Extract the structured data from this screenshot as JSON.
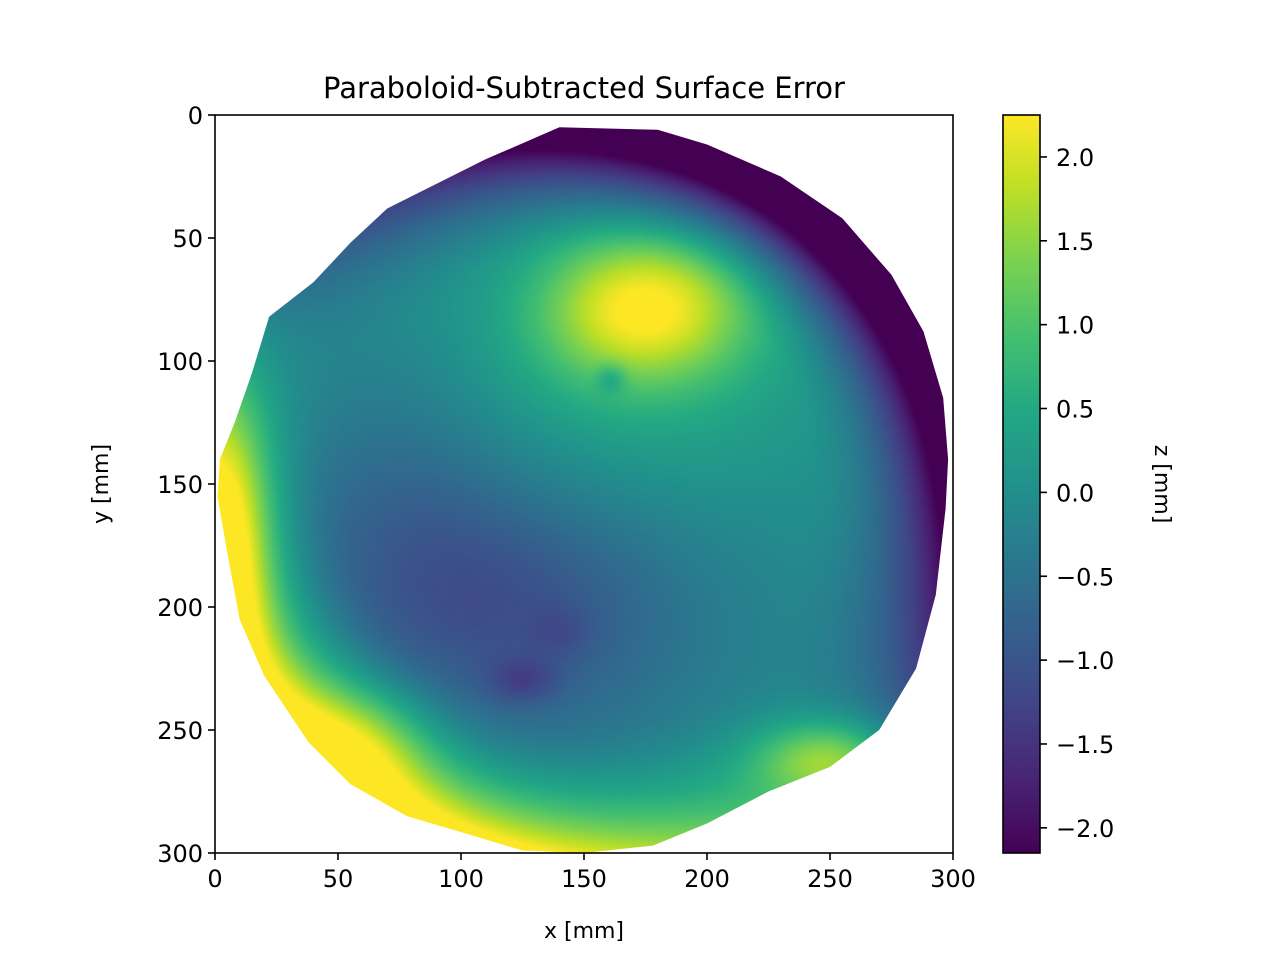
{
  "chart_data": {
    "type": "heatmap",
    "title": "Paraboloid-Subtracted Surface Error",
    "xlabel": "x [mm]",
    "ylabel": "y [mm]",
    "xlim": [
      0,
      300
    ],
    "ylim": [
      300,
      0
    ],
    "y_inverted": true,
    "x_ticks": [
      0,
      50,
      100,
      150,
      200,
      250,
      300
    ],
    "x_tick_labels": [
      "0",
      "50",
      "100",
      "150",
      "200",
      "250",
      "300"
    ],
    "y_ticks": [
      0,
      50,
      100,
      150,
      200,
      250,
      300
    ],
    "y_tick_labels": [
      "0",
      "50",
      "100",
      "150",
      "200",
      "250",
      "300"
    ],
    "grid": false,
    "colormap": "viridis",
    "colorbar": {
      "label": "z [mm]",
      "range": [
        -2.15,
        2.25
      ],
      "ticks": [
        -2.0,
        -1.5,
        -1.0,
        -0.5,
        0.0,
        0.5,
        1.0,
        1.5,
        2.0
      ],
      "tick_labels": [
        "−2.0",
        "−1.5",
        "−1.0",
        "−0.5",
        "0.0",
        "0.5",
        "1.0",
        "1.5",
        "2.0"
      ]
    },
    "mirror_outline": [
      [
        140,
        5
      ],
      [
        180,
        6
      ],
      [
        200,
        12
      ],
      [
        230,
        25
      ],
      [
        255,
        42
      ],
      [
        275,
        65
      ],
      [
        288,
        88
      ],
      [
        296,
        115
      ],
      [
        298,
        140
      ],
      [
        297,
        160
      ],
      [
        293,
        195
      ],
      [
        285,
        225
      ],
      [
        270,
        250
      ],
      [
        250,
        265
      ],
      [
        225,
        275
      ],
      [
        200,
        288
      ],
      [
        178,
        297
      ],
      [
        150,
        300
      ],
      [
        125,
        299
      ],
      [
        105,
        293
      ],
      [
        78,
        285
      ],
      [
        55,
        272
      ],
      [
        38,
        255
      ],
      [
        20,
        228
      ],
      [
        10,
        205
      ],
      [
        5,
        178
      ],
      [
        1,
        155
      ],
      [
        2,
        140
      ],
      [
        8,
        125
      ],
      [
        15,
        105
      ],
      [
        22,
        82
      ],
      [
        40,
        68
      ],
      [
        55,
        52
      ],
      [
        70,
        38
      ],
      [
        90,
        28
      ],
      [
        110,
        18
      ]
    ],
    "surface_features": [
      {
        "x": 175,
        "y": 75,
        "value": 1.95
      },
      {
        "x": 160,
        "y": 108,
        "value": -0.2
      },
      {
        "x": 125,
        "y": 230,
        "value": -1.45
      },
      {
        "x": 140,
        "y": 210,
        "value": -1.1
      },
      {
        "x": 110,
        "y": 175,
        "value": -1.0
      },
      {
        "x": 3,
        "y": 150,
        "value": 2.25
      },
      {
        "x": 15,
        "y": 210,
        "value": 2.2
      },
      {
        "x": 250,
        "y": 258,
        "value": 2.2
      },
      {
        "x": 150,
        "y": 8,
        "value": -2.1
      },
      {
        "x": 270,
        "y": 60,
        "value": -2.1
      },
      {
        "x": 290,
        "y": 110,
        "value": -1.6
      },
      {
        "x": 295,
        "y": 160,
        "value": -0.2
      }
    ]
  }
}
